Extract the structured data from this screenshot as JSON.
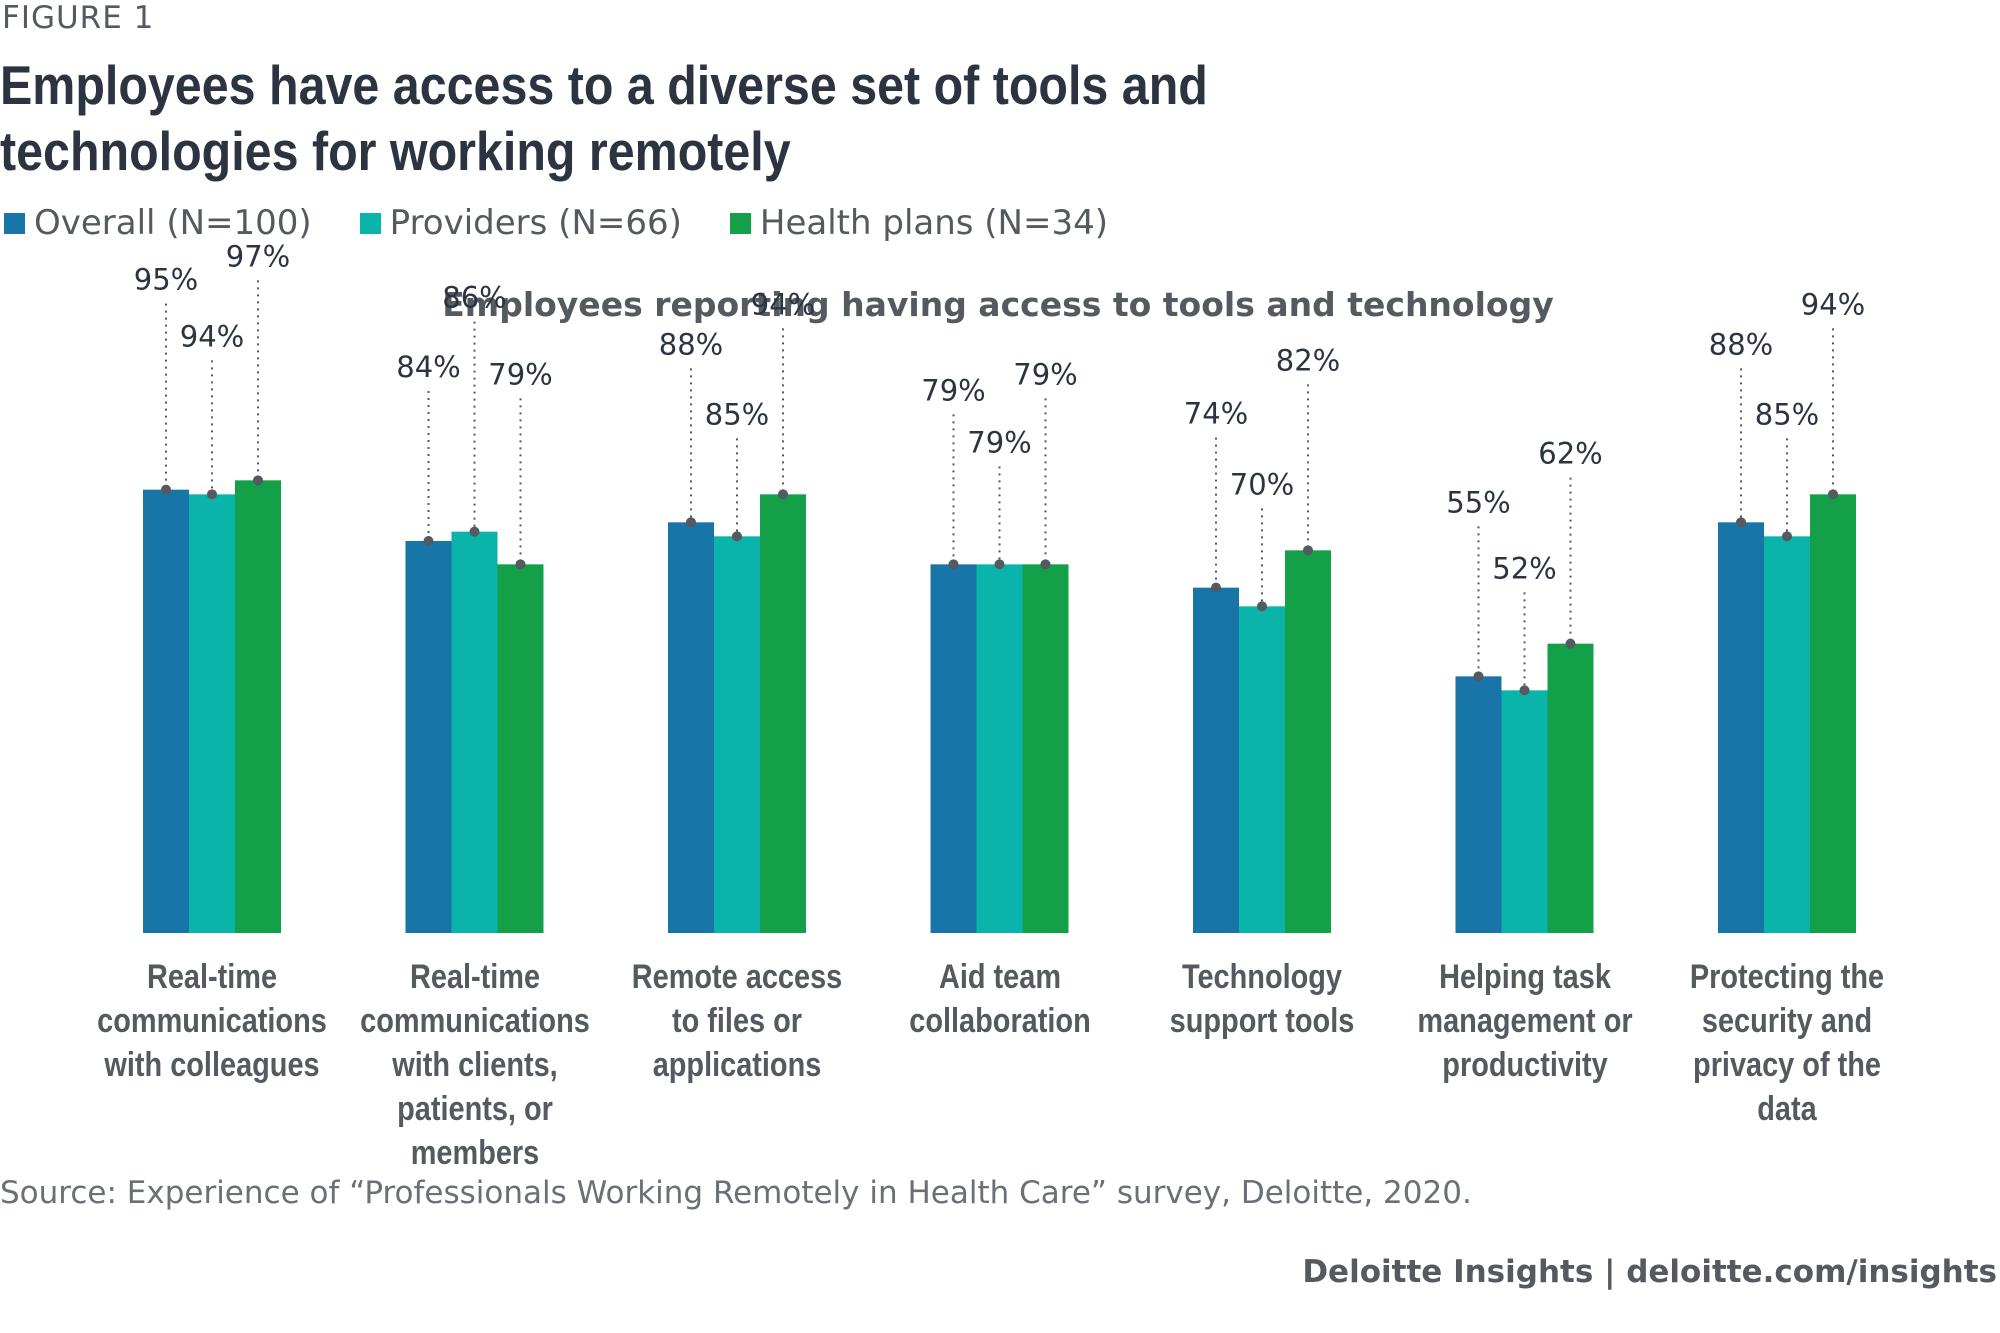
{
  "figure_label": "FIGURE 1",
  "title": "Employees have access to a diverse set of tools and technologies for working remotely",
  "legend": [
    {
      "name": "Overall (N=100)",
      "color": "#1775a8"
    },
    {
      "name": "Providers (N=66)",
      "color": "#0bb4ab"
    },
    {
      "name": "Health plans (N=34)",
      "color": "#14a048"
    }
  ],
  "source": "Source: Experience of “Professionals Working Remotely in Health Care” survey, Deloitte, 2020.",
  "footer": "Deloitte Insights | deloitte.com/insights",
  "chart_data": {
    "type": "bar",
    "title": "Employees reporting having access to tools and technology",
    "xlabel": "",
    "ylabel": "",
    "ylim": [
      0,
      150
    ],
    "grid": false,
    "legend_position": "top-left",
    "categories": [
      "Real-time\ncommunications\nwith colleagues",
      "Real-time\ncommunications\nwith clients,\npatients, or members",
      "Remote access\nto files or\napplications",
      "Aid team\ncollaboration",
      "Technology\nsupport tools",
      "Helping task\nmanagement or\nproductivity",
      "Protecting the\nsecurity and\nprivacy of the\ndata"
    ],
    "series": [
      {
        "name": "Overall (N=100)",
        "color": "#1775a8",
        "values": [
          95,
          84,
          88,
          79,
          74,
          55,
          88
        ],
        "labels": [
          "95%",
          "84%",
          "88%",
          "79%",
          "74%",
          "55%",
          "88%"
        ]
      },
      {
        "name": "Providers (N=66)",
        "color": "#0bb4ab",
        "values": [
          94,
          86,
          85,
          79,
          70,
          52,
          85
        ],
        "labels": [
          "94%",
          "86%",
          "85%",
          "79%",
          "70%",
          "52%",
          "85%"
        ]
      },
      {
        "name": "Health plans (N=34)",
        "color": "#14a048",
        "values": [
          97,
          79,
          94,
          79,
          82,
          62,
          94
        ],
        "labels": [
          "97%",
          "79%",
          "94%",
          "79%",
          "82%",
          "62%",
          "94%"
        ]
      }
    ]
  }
}
